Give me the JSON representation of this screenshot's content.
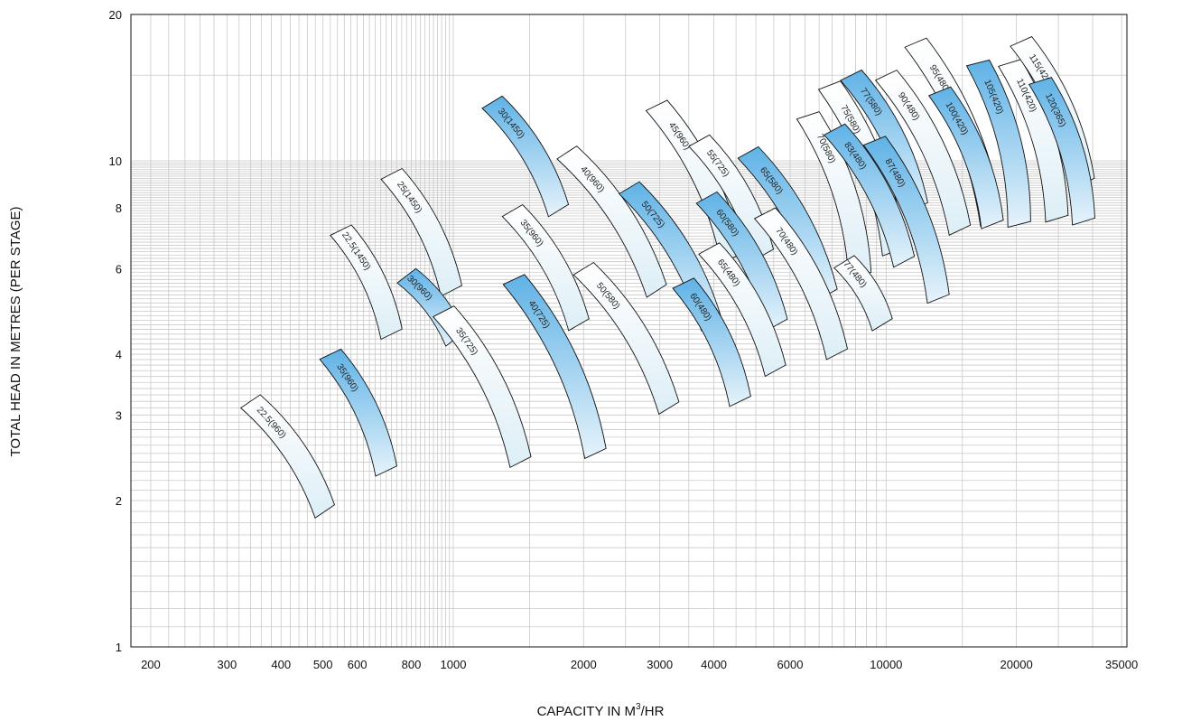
{
  "chart_data": {
    "type": "performance-map",
    "xlabel": "CAPACITY IN M",
    "xlabel_sup": "3",
    "xlabel_suffix": "/HR",
    "ylabel": "TOTAL HEAD IN METRES (PER STAGE)",
    "x_scale": "log",
    "y_scale": "log",
    "xlim": [
      180,
      36000
    ],
    "ylim": [
      1,
      20
    ],
    "grid": true,
    "x_ticks": [
      {
        "v": 200,
        "label": "200"
      },
      {
        "v": 300,
        "label": "300"
      },
      {
        "v": 400,
        "label": "400"
      },
      {
        "v": 500,
        "label": "500"
      },
      {
        "v": 600,
        "label": "600"
      },
      {
        "v": 800,
        "label": "800"
      },
      {
        "v": 1000,
        "label": "1000"
      },
      {
        "v": 2000,
        "label": "2000"
      },
      {
        "v": 3000,
        "label": "3000"
      },
      {
        "v": 4000,
        "label": "4000"
      },
      {
        "v": 6000,
        "label": "6000"
      },
      {
        "v": 10000,
        "label": "10000"
      },
      {
        "v": 20000,
        "label": "20000"
      },
      {
        "v": 35000,
        "label": "35000"
      }
    ],
    "y_ticks": [
      {
        "v": 1,
        "label": "1"
      },
      {
        "v": 2,
        "label": "2"
      },
      {
        "v": 3,
        "label": "3"
      },
      {
        "v": 4,
        "label": "4"
      },
      {
        "v": 6,
        "label": "6"
      },
      {
        "v": 8,
        "label": "8"
      },
      {
        "v": 10,
        "label": "10"
      },
      {
        "v": 20,
        "label": "20"
      }
    ],
    "colors": {
      "blue": "#64b4e6",
      "white": "#f2f8fb",
      "outline": "#111111",
      "grid": "#c9c9c9"
    },
    "bands": [
      {
        "label": "22.5(960)",
        "fill": "white",
        "x1": 340,
        "y1": 3.2,
        "x2": 505,
        "y2": 1.9
      },
      {
        "label": "35(960)",
        "fill": "blue",
        "x1": 520,
        "y1": 4.0,
        "x2": 700,
        "y2": 2.3
      },
      {
        "label": "22.5(1450)",
        "fill": "white",
        "x1": 550,
        "y1": 7.2,
        "x2": 720,
        "y2": 4.4
      },
      {
        "label": "25(1450)",
        "fill": "white",
        "x1": 720,
        "y1": 9.4,
        "x2": 990,
        "y2": 5.4
      },
      {
        "label": "30(960)",
        "fill": "blue",
        "x1": 780,
        "y1": 5.8,
        "x2": 1010,
        "y2": 4.3
      },
      {
        "label": "35(725)",
        "fill": "white",
        "x1": 950,
        "y1": 4.9,
        "x2": 1430,
        "y2": 2.4
      },
      {
        "label": "30(1450)",
        "fill": "blue",
        "x1": 1230,
        "y1": 13.2,
        "x2": 1750,
        "y2": 7.9
      },
      {
        "label": "35(960)",
        "fill": "white",
        "x1": 1370,
        "y1": 7.9,
        "x2": 1950,
        "y2": 4.6
      },
      {
        "label": "40(725)",
        "fill": "blue",
        "x1": 1380,
        "y1": 5.7,
        "x2": 2130,
        "y2": 2.5
      },
      {
        "label": "40(960)",
        "fill": "white",
        "x1": 1830,
        "y1": 10.4,
        "x2": 2950,
        "y2": 5.4
      },
      {
        "label": "50(580)",
        "fill": "white",
        "x1": 2000,
        "y1": 6.0,
        "x2": 3150,
        "y2": 3.1
      },
      {
        "label": "50(725)",
        "fill": "blue",
        "x1": 2550,
        "y1": 8.8,
        "x2": 3950,
        "y2": 4.6
      },
      {
        "label": "45(960)",
        "fill": "white",
        "x1": 2950,
        "y1": 13.0,
        "x2": 4400,
        "y2": 6.3
      },
      {
        "label": "60(480)",
        "fill": "blue",
        "x1": 3400,
        "y1": 5.6,
        "x2": 4600,
        "y2": 3.2
      },
      {
        "label": "55(725)",
        "fill": "white",
        "x1": 3700,
        "y1": 11.0,
        "x2": 5200,
        "y2": 6.4
      },
      {
        "label": "60(580)",
        "fill": "blue",
        "x1": 3850,
        "y1": 8.4,
        "x2": 5600,
        "y2": 4.6
      },
      {
        "label": "65(480)",
        "fill": "white",
        "x1": 3900,
        "y1": 6.6,
        "x2": 5550,
        "y2": 3.7
      },
      {
        "label": "65(580)",
        "fill": "blue",
        "x1": 4800,
        "y1": 10.4,
        "x2": 7300,
        "y2": 5.3
      },
      {
        "label": "70(480)",
        "fill": "white",
        "x1": 5250,
        "y1": 7.8,
        "x2": 7700,
        "y2": 4.0
      },
      {
        "label": "70(580)",
        "fill": "white",
        "x1": 6600,
        "y1": 12.4,
        "x2": 8700,
        "y2": 5.8
      },
      {
        "label": "75(580)",
        "fill": "white",
        "x1": 7400,
        "y1": 14.3,
        "x2": 10400,
        "y2": 6.5
      },
      {
        "label": "77(480)",
        "fill": "white",
        "x1": 8000,
        "y1": 6.2,
        "x2": 9800,
        "y2": 4.6
      },
      {
        "label": "83(480)",
        "fill": "blue",
        "x1": 7600,
        "y1": 11.6,
        "x2": 11000,
        "y2": 6.2
      },
      {
        "label": "77(580)",
        "fill": "blue",
        "x1": 8300,
        "y1": 15.0,
        "x2": 11800,
        "y2": 8.0
      },
      {
        "label": "87(480)",
        "fill": "blue",
        "x1": 9400,
        "y1": 11.0,
        "x2": 13200,
        "y2": 5.2
      },
      {
        "label": "90(480)",
        "fill": "white",
        "x1": 10000,
        "y1": 15.0,
        "x2": 14800,
        "y2": 7.2
      },
      {
        "label": "95(480)",
        "fill": "white",
        "x1": 11700,
        "y1": 17.5,
        "x2": 17500,
        "y2": 7.5
      },
      {
        "label": "100(420)",
        "fill": "blue",
        "x1": 13300,
        "y1": 13.9,
        "x2": 17600,
        "y2": 7.4
      },
      {
        "label": "105(420)",
        "fill": "blue",
        "x1": 16300,
        "y1": 15.9,
        "x2": 20300,
        "y2": 7.4
      },
      {
        "label": "110(420)",
        "fill": "white",
        "x1": 19300,
        "y1": 15.9,
        "x2": 24800,
        "y2": 7.6
      },
      {
        "label": "115(420)",
        "fill": "white",
        "x1": 20500,
        "y1": 17.6,
        "x2": 28600,
        "y2": 9.0
      },
      {
        "label": "120(365)",
        "fill": "blue",
        "x1": 22700,
        "y1": 14.6,
        "x2": 28600,
        "y2": 7.5
      }
    ]
  }
}
